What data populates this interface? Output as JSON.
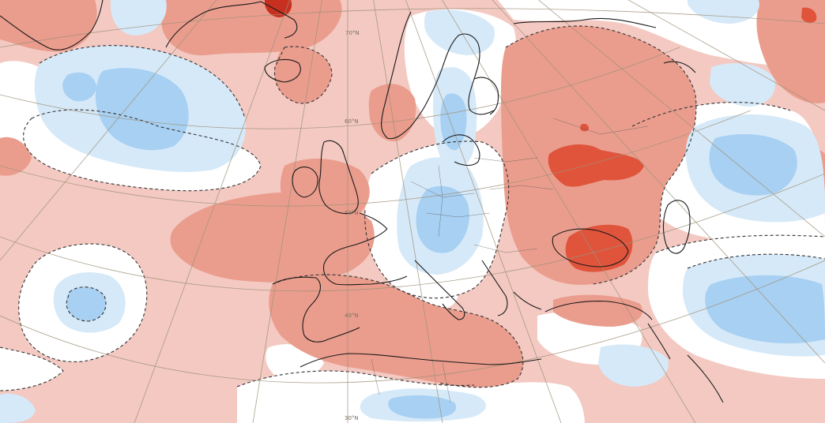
{
  "map": {
    "colors": {
      "light_positive": "#f3c9c2",
      "moderate_positive": "#ea9d8d",
      "strong_positive": "#e0543c",
      "very_strong_positive": "#c7301f",
      "neutral": "#ffffff",
      "light_negative": "#d6e9f8",
      "moderate_negative": "#a8d0f2",
      "graticule": "#9e9179",
      "coastline": "#1a1a1a",
      "zero_contour": "#333333"
    },
    "latitude_labels": [
      "70°N",
      "60°N",
      "50°N",
      "40°N",
      "30°N"
    ]
  }
}
